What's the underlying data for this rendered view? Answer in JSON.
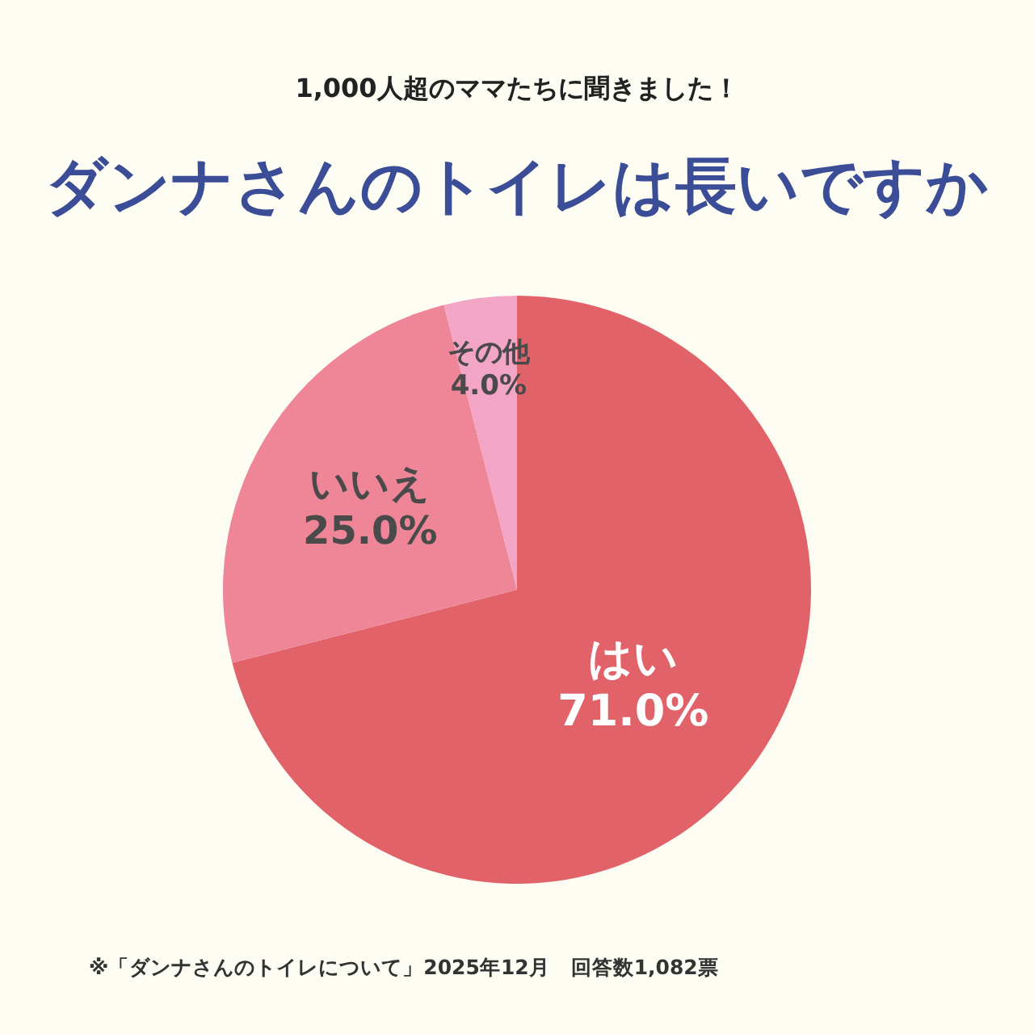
{
  "chart_data": {
    "type": "pie",
    "subtitle": "1,000人超のママたちに聞きました！",
    "title": "ダンナさんのトイレは長いですか",
    "categories": [
      "はい",
      "いいえ",
      "その他"
    ],
    "values": [
      71.0,
      25.0,
      4.0
    ],
    "value_labels": [
      "71.0%",
      "25.0%",
      "4.0%"
    ],
    "colors": [
      "#e2626a",
      "#ee8698",
      "#f3a5c6"
    ],
    "annotations": [
      "※「ダンナさんのトイレについて」2025年12月　回答数1,082票"
    ]
  }
}
